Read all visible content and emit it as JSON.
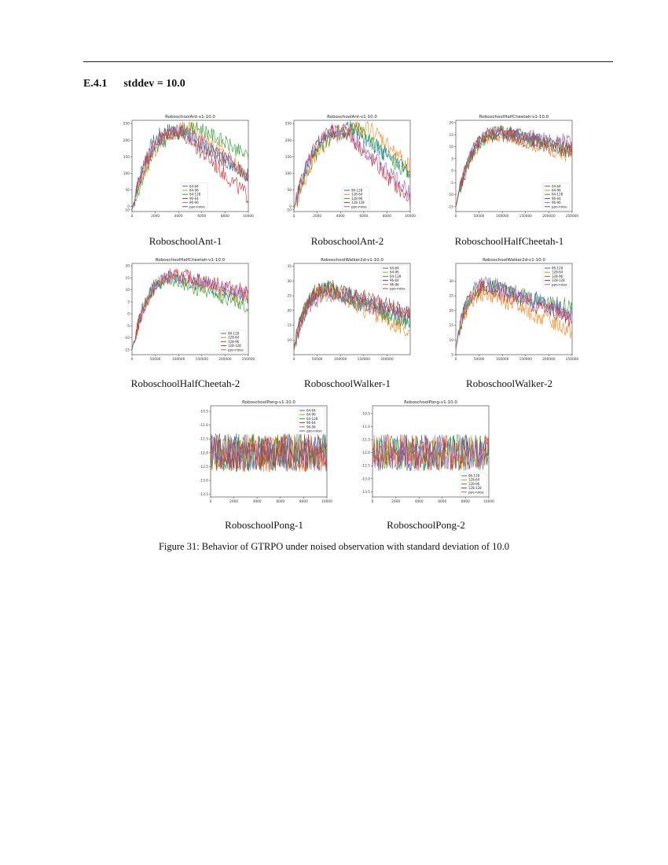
{
  "section": {
    "number": "E.4.1",
    "title": "stddev = 10.0"
  },
  "figure_caption": "Figure 31: Behavior of GTRPO under noised observation with standard deviation of 10.0",
  "colors": [
    "#1f77b4",
    "#ff7f0e",
    "#2ca02c",
    "#d62728",
    "#9467bd",
    "#8c564b"
  ],
  "chart_data": [
    {
      "type": "line",
      "caption": "RoboschoolAnt-1",
      "title": "RoboschoolAnt-v1-10.0",
      "xlim": [
        0,
        10000
      ],
      "ylim": [
        -15,
        260
      ],
      "xticks": [
        0,
        2000,
        4000,
        6000,
        8000,
        10000
      ],
      "xtick_labels": [
        "0",
        "2000",
        "4000",
        "6000",
        "8000",
        "10000"
      ],
      "yticks": [
        -10,
        0,
        50,
        100,
        150,
        200,
        250
      ],
      "ytick_labels": [
        "-10",
        "0",
        "50",
        "100",
        "150",
        "200",
        "250"
      ],
      "legend": "bottom-center",
      "shape": "rise_decay",
      "series": [
        {
          "name": "64-64",
          "start": -10,
          "peak": 230,
          "peak_x": 4000,
          "end": 100,
          "noise": 25
        },
        {
          "name": "64-96",
          "start": -10,
          "peak": 235,
          "peak_x": 5500,
          "end": 90,
          "noise": 25
        },
        {
          "name": "64-128",
          "start": -10,
          "peak": 235,
          "peak_x": 6000,
          "end": 150,
          "noise": 22
        },
        {
          "name": "96-64",
          "start": -10,
          "peak": 225,
          "peak_x": 4200,
          "end": 30,
          "noise": 25
        },
        {
          "name": "96-96",
          "start": -10,
          "peak": 225,
          "peak_x": 4500,
          "end": 95,
          "noise": 25
        },
        {
          "name": "ppo-noise",
          "start": -10,
          "peak": 220,
          "peak_x": 4200,
          "end": 90,
          "noise": 22
        }
      ]
    },
    {
      "type": "line",
      "caption": "RoboschoolAnt-2",
      "title": "RoboschoolAnt-v1-10.0",
      "xlim": [
        0,
        10000
      ],
      "ylim": [
        -15,
        260
      ],
      "xticks": [
        0,
        2000,
        4000,
        6000,
        8000,
        10000
      ],
      "xtick_labels": [
        "0",
        "2000",
        "4000",
        "6000",
        "8000",
        "10000"
      ],
      "yticks": [
        -10,
        0,
        50,
        100,
        150,
        200,
        250
      ],
      "ytick_labels": [
        "-10",
        "0",
        "50",
        "100",
        "150",
        "200",
        "250"
      ],
      "legend": "bottom-center",
      "shape": "rise_decay",
      "series": [
        {
          "name": "96-128",
          "start": -10,
          "peak": 235,
          "peak_x": 5000,
          "end": 100,
          "noise": 25
        },
        {
          "name": "128-64",
          "start": -10,
          "peak": 235,
          "peak_x": 6500,
          "end": 120,
          "noise": 25
        },
        {
          "name": "128-96",
          "start": -10,
          "peak": 230,
          "peak_x": 5500,
          "end": 95,
          "noise": 25
        },
        {
          "name": "128-128",
          "start": -10,
          "peak": 225,
          "peak_x": 4500,
          "end": 15,
          "noise": 25
        },
        {
          "name": "ppo-noise",
          "start": -10,
          "peak": 225,
          "peak_x": 4500,
          "end": 40,
          "noise": 25
        }
      ]
    },
    {
      "type": "line",
      "caption": "RoboschoolHalfCheetah-1",
      "title": "RoboschoolHalfCheetah-v1-10.0",
      "xlim": [
        0,
        250000
      ],
      "ylim": [
        -17,
        21
      ],
      "xticks": [
        0,
        50000,
        100000,
        150000,
        200000,
        250000
      ],
      "xtick_labels": [
        "0",
        "50000",
        "100000",
        "150000",
        "200000",
        "250000"
      ],
      "yticks": [
        -15,
        -10,
        -5,
        0,
        5,
        10,
        15,
        20
      ],
      "ytick_labels": [
        "-15",
        "-10",
        "-5",
        "0",
        "5",
        "10",
        "15",
        "20"
      ],
      "legend": "bottom-right",
      "shape": "rise_plateau",
      "series": [
        {
          "name": "64-64",
          "start": -15,
          "peak": 16,
          "peak_x": 100000,
          "end": 8,
          "noise": 3
        },
        {
          "name": "64-96",
          "start": -15,
          "peak": 15,
          "peak_x": 100000,
          "end": 6,
          "noise": 3
        },
        {
          "name": "64-128",
          "start": -15,
          "peak": 16,
          "peak_x": 110000,
          "end": 9,
          "noise": 3
        },
        {
          "name": "96-64",
          "start": -15,
          "peak": 16,
          "peak_x": 100000,
          "end": 10,
          "noise": 3
        },
        {
          "name": "96-96",
          "start": -15,
          "peak": 16,
          "peak_x": 100000,
          "end": 12,
          "noise": 3
        },
        {
          "name": "ppo-noise",
          "start": -15,
          "peak": 15,
          "peak_x": 100000,
          "end": 8,
          "noise": 3
        }
      ]
    },
    {
      "type": "line",
      "caption": "RoboschoolHalfCheetah-2",
      "title": "RoboschoolHalfCheetah-v1-10.0",
      "xlim": [
        0,
        250000
      ],
      "ylim": [
        -17,
        21
      ],
      "xticks": [
        0,
        50000,
        100000,
        150000,
        200000,
        250000
      ],
      "xtick_labels": [
        "0",
        "50000",
        "100000",
        "150000",
        "200000",
        "250000"
      ],
      "yticks": [
        -15,
        -10,
        -5,
        0,
        5,
        10,
        15,
        20
      ],
      "ytick_labels": [
        "-15",
        "-10",
        "-5",
        "0",
        "5",
        "10",
        "15",
        "20"
      ],
      "legend": "bottom-right",
      "shape": "rise_plateau",
      "series": [
        {
          "name": "96-128",
          "start": -15,
          "peak": 15,
          "peak_x": 100000,
          "end": 6,
          "noise": 3
        },
        {
          "name": "128-64",
          "start": -15,
          "peak": 15,
          "peak_x": 100000,
          "end": 5,
          "noise": 3
        },
        {
          "name": "128-96",
          "start": -15,
          "peak": 14,
          "peak_x": 90000,
          "end": 3,
          "noise": 3
        },
        {
          "name": "128-128",
          "start": -15,
          "peak": 16,
          "peak_x": 110000,
          "end": 9,
          "noise": 3
        },
        {
          "name": "ppo-noise",
          "start": -15,
          "peak": 16,
          "peak_x": 100000,
          "end": 8,
          "noise": 3
        }
      ]
    },
    {
      "type": "line",
      "caption": "RoboschoolWalker-1",
      "title": "RoboschoolWalker2d-v1-10.0",
      "xlim": [
        0,
        250000
      ],
      "ylim": [
        5,
        36
      ],
      "xticks": [
        0,
        50000,
        100000,
        150000,
        200000
      ],
      "xtick_labels": [
        "0",
        "50000",
        "100000",
        "150000",
        "200000"
      ],
      "yticks": [
        10,
        15,
        20,
        25,
        30,
        35
      ],
      "ytick_labels": [
        "10",
        "15",
        "20",
        "25",
        "30",
        "35"
      ],
      "legend": "top-right",
      "shape": "rise_decay",
      "series": [
        {
          "name": "64-64",
          "start": 7,
          "peak": 27,
          "peak_x": 80000,
          "end": 17,
          "noise": 3
        },
        {
          "name": "64-96",
          "start": 7,
          "peak": 26,
          "peak_x": 80000,
          "end": 13,
          "noise": 3
        },
        {
          "name": "64-128",
          "start": 7,
          "peak": 27,
          "peak_x": 80000,
          "end": 15,
          "noise": 3
        },
        {
          "name": "96-64",
          "start": 7,
          "peak": 27,
          "peak_x": 80000,
          "end": 19,
          "noise": 3
        },
        {
          "name": "96-96",
          "start": 7,
          "peak": 25,
          "peak_x": 80000,
          "end": 18,
          "noise": 3
        },
        {
          "name": "ppo-noise",
          "start": 7,
          "peak": 28,
          "peak_x": 80000,
          "end": 19,
          "noise": 3
        }
      ]
    },
    {
      "type": "line",
      "caption": "RoboschoolWalker-2",
      "title": "RoboschoolWalker2d-v1-10.0",
      "xlim": [
        0,
        250000
      ],
      "ylim": [
        5,
        36
      ],
      "xticks": [
        0,
        50000,
        100000,
        150000,
        200000,
        250000
      ],
      "xtick_labels": [
        "0",
        "50000",
        "100000",
        "150000",
        "200000",
        "250000"
      ],
      "yticks": [
        5,
        10,
        15,
        20,
        25,
        30
      ],
      "ytick_labels": [
        "5",
        "10",
        "15",
        "20",
        "25",
        "30"
      ],
      "legend": "top-right",
      "shape": "rise_decay",
      "series": [
        {
          "name": "96-128",
          "start": 7,
          "peak": 28,
          "peak_x": 70000,
          "end": 19,
          "noise": 3
        },
        {
          "name": "128-64",
          "start": 7,
          "peak": 26,
          "peak_x": 70000,
          "end": 13,
          "noise": 3
        },
        {
          "name": "128-96",
          "start": 7,
          "peak": 28,
          "peak_x": 70000,
          "end": 21,
          "noise": 3
        },
        {
          "name": "128-128",
          "start": 7,
          "peak": 28,
          "peak_x": 70000,
          "end": 17,
          "noise": 3
        },
        {
          "name": "ppo-noise",
          "start": 7,
          "peak": 29,
          "peak_x": 70000,
          "end": 19,
          "noise": 3
        }
      ]
    },
    {
      "type": "line",
      "caption": "RoboschoolPong-1",
      "title": "RoboschoolPong-v1-10.0",
      "xlim": [
        0,
        10000
      ],
      "ylim": [
        -13.6,
        -10.3
      ],
      "xticks": [
        0,
        2000,
        4000,
        6000,
        8000,
        10000
      ],
      "xtick_labels": [
        "0",
        "2000",
        "4000",
        "6000",
        "8000",
        "10000"
      ],
      "yticks": [
        -10.5,
        -11.0,
        -11.5,
        -12.0,
        -12.5,
        -13.0,
        -13.5
      ],
      "ytick_labels": [
        "-10.5",
        "-11.0",
        "-11.5",
        "-12.0",
        "-12.5",
        "-13.0",
        "-13.5"
      ],
      "legend": "top-right",
      "shape": "flat",
      "series": [
        {
          "name": "64-64",
          "start": -12.0,
          "peak": -12.0,
          "peak_x": 0,
          "end": -12.0,
          "noise": 0.7
        },
        {
          "name": "64-96",
          "start": -12.0,
          "peak": -12.0,
          "peak_x": 0,
          "end": -12.0,
          "noise": 0.7
        },
        {
          "name": "64-128",
          "start": -12.0,
          "peak": -12.0,
          "peak_x": 0,
          "end": -12.0,
          "noise": 0.7
        },
        {
          "name": "96-64",
          "start": -12.0,
          "peak": -12.0,
          "peak_x": 0,
          "end": -12.0,
          "noise": 0.7
        },
        {
          "name": "96-96",
          "start": -12.0,
          "peak": -12.0,
          "peak_x": 0,
          "end": -12.0,
          "noise": 0.7
        },
        {
          "name": "ppo-noise",
          "start": -12.0,
          "peak": -12.0,
          "peak_x": 0,
          "end": -12.0,
          "noise": 0.7
        }
      ]
    },
    {
      "type": "line",
      "caption": "RoboschoolPong-2",
      "title": "RoboschoolPong-v1-10.0",
      "xlim": [
        0,
        10000
      ],
      "ylim": [
        -13.7,
        -10.2
      ],
      "xticks": [
        0,
        2000,
        4000,
        6000,
        8000,
        10000
      ],
      "xtick_labels": [
        "0",
        "2000",
        "4000",
        "6000",
        "8000",
        "10000"
      ],
      "yticks": [
        -10.5,
        -11.0,
        -11.5,
        -12.0,
        -12.5,
        -13.0,
        -13.5
      ],
      "ytick_labels": [
        "-10.5",
        "-11.0",
        "-11.5",
        "-12.0",
        "-12.5",
        "-13.0",
        "-13.5"
      ],
      "legend": "bottom-right",
      "shape": "flat",
      "series": [
        {
          "name": "96-128",
          "start": -12.0,
          "peak": -12.0,
          "peak_x": 0,
          "end": -12.0,
          "noise": 0.7
        },
        {
          "name": "128-64",
          "start": -12.0,
          "peak": -12.0,
          "peak_x": 0,
          "end": -12.0,
          "noise": 0.7
        },
        {
          "name": "128-96",
          "start": -12.0,
          "peak": -12.0,
          "peak_x": 0,
          "end": -12.0,
          "noise": 0.7
        },
        {
          "name": "128-128",
          "start": -12.0,
          "peak": -12.0,
          "peak_x": 0,
          "end": -12.0,
          "noise": 0.7
        },
        {
          "name": "ppo-noise",
          "start": -12.0,
          "peak": -12.0,
          "peak_x": 0,
          "end": -12.0,
          "noise": 0.7
        }
      ]
    }
  ]
}
